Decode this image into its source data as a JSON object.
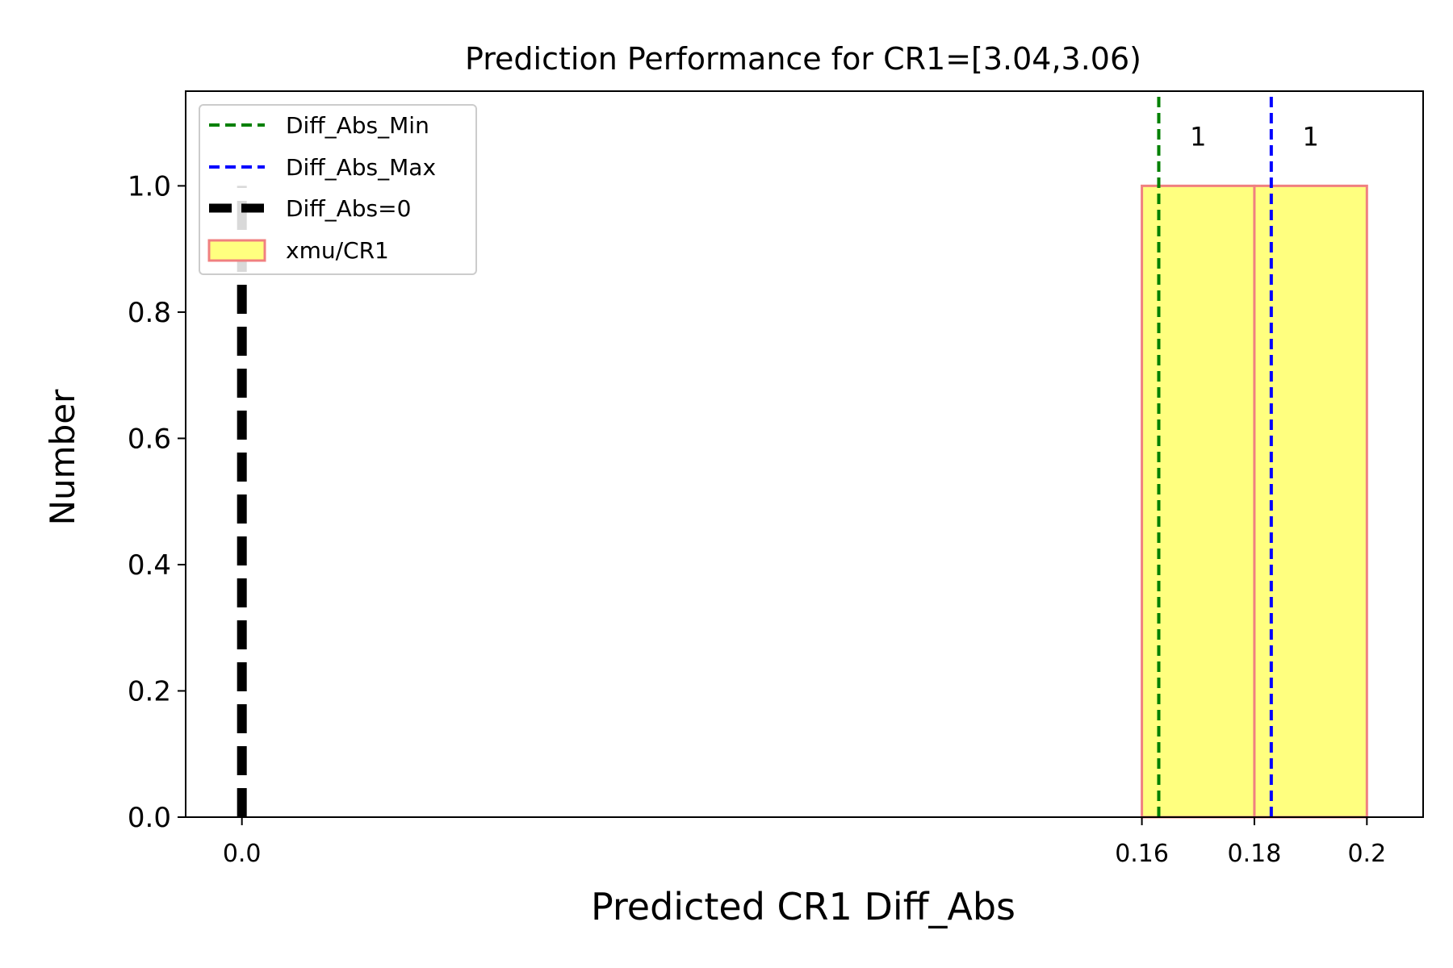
{
  "chart_data": {
    "type": "bar",
    "title": "Prediction Performance for CR1=[3.04,3.06)",
    "xlabel": "Predicted CR1 Diff_Abs",
    "ylabel": "Number",
    "xlim": [
      -0.01,
      0.21
    ],
    "ylim": [
      0,
      1.15
    ],
    "x_ticks": [
      {
        "value": 0.0,
        "label": "0.0"
      },
      {
        "value": 0.16,
        "label": "0.16"
      },
      {
        "value": 0.18,
        "label": "0.18"
      },
      {
        "value": 0.2,
        "label": "0.2"
      }
    ],
    "y_ticks": [
      {
        "value": 0.0,
        "label": "0.0"
      },
      {
        "value": 0.2,
        "label": "0.2"
      },
      {
        "value": 0.4,
        "label": "0.4"
      },
      {
        "value": 0.6,
        "label": "0.6"
      },
      {
        "value": 0.8,
        "label": "0.8"
      },
      {
        "value": 1.0,
        "label": "1.0"
      }
    ],
    "bins": [
      {
        "x0": 0.16,
        "x1": 0.18,
        "count": 1,
        "label": "1"
      },
      {
        "x0": 0.18,
        "x1": 0.2,
        "count": 1,
        "label": "1"
      }
    ],
    "vlines": [
      {
        "name": "Diff_Abs_Min",
        "x": 0.163,
        "color": "#008000",
        "style": "dashed"
      },
      {
        "name": "Diff_Abs_Max",
        "x": 0.183,
        "color": "#0000ff",
        "style": "dashed"
      },
      {
        "name": "Diff_Abs=0",
        "x": 0.0,
        "color": "#000000",
        "style": "dashed-thick",
        "ymax": 1.0
      }
    ],
    "hist_series": {
      "name": "xmu/CR1",
      "face_color": "#ffff7f",
      "edge_color": "#f08080"
    },
    "grid": false,
    "legend_position": "upper-left"
  }
}
